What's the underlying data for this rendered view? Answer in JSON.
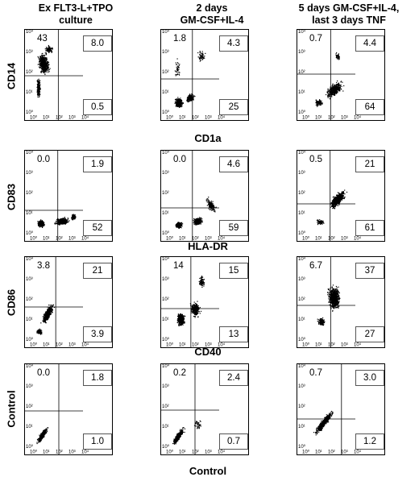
{
  "columns": [
    {
      "line1": "Ex FLT3-L+TPO",
      "line2": "culture"
    },
    {
      "line1": "2 days",
      "line2": "GM-CSF+IL-4"
    },
    {
      "line1": "5 days GM-CSF+IL-4,",
      "line2": "last 3 days TNF"
    }
  ],
  "rows": [
    {
      "ylabel": "CD14",
      "xlabel": "CD1a"
    },
    {
      "ylabel": "CD83",
      "xlabel": "HLA-DR"
    },
    {
      "ylabel": "CD86",
      "xlabel": "CD40"
    },
    {
      "ylabel": "Control",
      "xlabel": "Control"
    }
  ],
  "axis_ticks": [
    "10⁰",
    "10¹",
    "10²",
    "10³",
    "10⁴"
  ],
  "chart_data": {
    "type": "scatter",
    "scale": "log",
    "xlim": [
      1,
      10000
    ],
    "ylim": [
      1,
      10000
    ],
    "quadrant_percentages": [
      [
        {
          "upper_left": "43",
          "upper_right": "8.0",
          "lower_right": "0.5"
        },
        {
          "upper_left": "1.8",
          "upper_right": "4.3",
          "lower_right": "25"
        },
        {
          "upper_left": "0.7",
          "upper_right": "4.4",
          "lower_right": "64"
        }
      ],
      [
        {
          "upper_left": "0.0",
          "upper_right": "1.9",
          "lower_right": "52"
        },
        {
          "upper_left": "0.0",
          "upper_right": "4.6",
          "lower_right": "59"
        },
        {
          "upper_left": "0.5",
          "upper_right": "21",
          "lower_right": "61"
        }
      ],
      [
        {
          "upper_left": "3.8",
          "upper_right": "21",
          "lower_right": "3.9"
        },
        {
          "upper_left": "14",
          "upper_right": "15",
          "lower_right": "13"
        },
        {
          "upper_left": "6.7",
          "upper_right": "37",
          "lower_right": "27"
        }
      ],
      [
        {
          "upper_left": "0.0",
          "upper_right": "1.8",
          "lower_right": "1.0"
        },
        {
          "upper_left": "0.2",
          "upper_right": "2.4",
          "lower_right": "0.7"
        },
        {
          "upper_left": "0.7",
          "upper_right": "3.0",
          "lower_right": "1.2"
        }
      ]
    ],
    "gates": [
      [
        {
          "x": 0.49,
          "y": 0.45
        },
        {
          "x": 0.45,
          "y": 0.41
        },
        {
          "x": 0.49,
          "y": 0.47
        }
      ],
      [
        {
          "x": 0.48,
          "y": 0.28
        },
        {
          "x": 0.45,
          "y": 0.31
        },
        {
          "x": 0.48,
          "y": 0.36
        }
      ],
      [
        {
          "x": 0.44,
          "y": 0.4
        },
        {
          "x": 0.42,
          "y": 0.38
        },
        {
          "x": 0.49,
          "y": 0.42
        }
      ],
      [
        {
          "x": 0.5,
          "y": 0.44
        },
        {
          "x": 0.5,
          "y": 0.45
        },
        {
          "x": 0.7,
          "y": 0.34
        }
      ]
    ]
  }
}
